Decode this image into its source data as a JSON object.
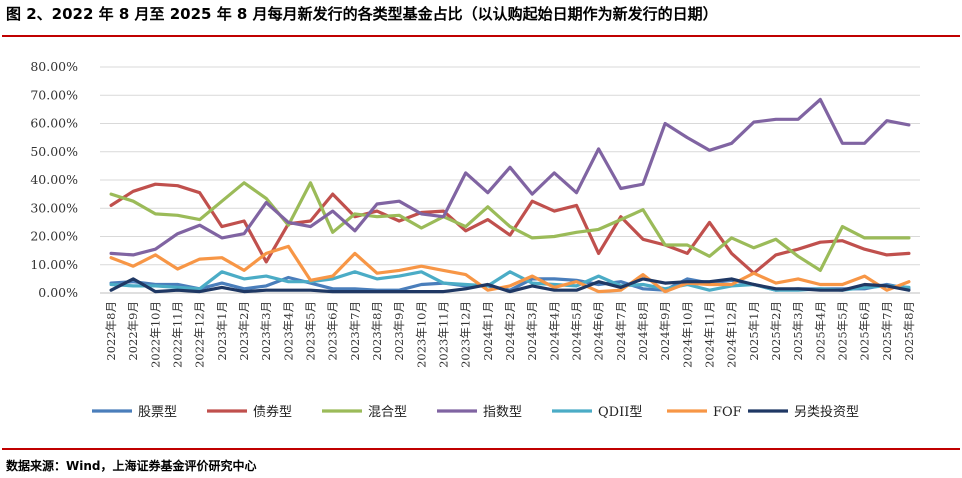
{
  "header": {
    "title": "图 2、2022 年 8 月至 2025 年 8 月每月新发行的各类型基金占比（以认购起始日期作为新发行的日期）"
  },
  "footer": {
    "source": "数据来源：Wind，上海证券基金评价研究中心"
  },
  "colors": {
    "rule": "#c00000",
    "grid": "#d9d9d9"
  },
  "chart_data": {
    "type": "line",
    "title": "",
    "xlabel": "",
    "ylabel": "",
    "ylim": [
      0,
      80
    ],
    "yticks": [
      "0.00%",
      "10.00%",
      "20.00%",
      "30.00%",
      "40.00%",
      "50.00%",
      "60.00%",
      "70.00%",
      "80.00%"
    ],
    "grid": "horizontal",
    "legend": "bottom",
    "x": [
      "2022年8月",
      "2022年9月",
      "2022年10月",
      "2022年11月",
      "2022年12月",
      "2023年1月",
      "2023年2月",
      "2023年3月",
      "2023年4月",
      "2023年5月",
      "2023年6月",
      "2023年7月",
      "2023年8月",
      "2023年9月",
      "2023年10月",
      "2023年11月",
      "2023年12月",
      "2024年1月",
      "2024年2月",
      "2024年3月",
      "2024年4月",
      "2024年5月",
      "2024年6月",
      "2024年7月",
      "2024年8月",
      "2024年9月",
      "2024年10月",
      "2024年11月",
      "2024年12月",
      "2025年1月",
      "2025年2月",
      "2025年3月",
      "2025年4月",
      "2025年5月",
      "2025年6月",
      "2025年7月",
      "2025年8月"
    ],
    "series": [
      {
        "name": "股票型",
        "color": "#4a7ebb",
        "values": [
          3.5,
          4.0,
          3.0,
          3.0,
          1.5,
          3.5,
          1.5,
          2.5,
          5.5,
          3.5,
          1.5,
          1.5,
          1.0,
          1.0,
          3.0,
          3.5,
          2.5,
          2.5,
          1.0,
          5.0,
          5.0,
          4.5,
          3.0,
          4.0,
          1.5,
          1.0,
          5.0,
          3.5,
          4.5,
          3.0,
          1.0,
          1.5,
          1.5,
          1.5,
          1.5,
          3.0,
          1.5
        ]
      },
      {
        "name": "债券型",
        "color": "#c0504d",
        "values": [
          31.0,
          36.0,
          38.5,
          38.0,
          35.5,
          23.5,
          25.5,
          11.0,
          24.5,
          25.5,
          35.0,
          27.0,
          29.0,
          25.5,
          28.5,
          29.0,
          22.0,
          26.0,
          20.5,
          32.5,
          29.0,
          31.0,
          14.0,
          27.0,
          19.0,
          17.0,
          14.0,
          25.0,
          14.0,
          7.0,
          13.5,
          15.5,
          18.0,
          18.5,
          15.5,
          13.5,
          14.0
        ]
      },
      {
        "name": "混合型",
        "color": "#9bbb59",
        "values": [
          35.0,
          32.5,
          28.0,
          27.5,
          26.0,
          32.5,
          39.0,
          33.5,
          24.0,
          39.0,
          21.5,
          28.0,
          27.0,
          27.5,
          23.0,
          27.0,
          23.5,
          30.5,
          23.5,
          19.5,
          20.0,
          21.5,
          22.5,
          26.0,
          29.5,
          17.0,
          17.0,
          13.0,
          19.5,
          16.0,
          19.0,
          13.0,
          8.0,
          23.5,
          19.5,
          19.5,
          19.5
        ]
      },
      {
        "name": "指数型",
        "color": "#8064a2",
        "values": [
          14.0,
          13.5,
          15.5,
          21.0,
          24.0,
          19.5,
          21.0,
          32.0,
          25.0,
          23.5,
          29.0,
          22.0,
          31.5,
          32.5,
          28.0,
          27.0,
          42.5,
          35.5,
          44.5,
          35.0,
          42.5,
          35.5,
          51.0,
          37.0,
          38.5,
          60.0,
          55.0,
          50.5,
          53.0,
          60.5,
          61.5,
          61.5,
          68.5,
          53.0,
          53.0,
          61.0,
          59.5
        ]
      },
      {
        "name": "QDII型",
        "color": "#4bacc6",
        "values": [
          3.0,
          2.5,
          2.5,
          2.0,
          1.5,
          7.5,
          5.0,
          6.0,
          4.0,
          4.0,
          5.0,
          7.5,
          5.0,
          6.0,
          7.5,
          3.5,
          3.0,
          2.5,
          7.5,
          3.5,
          3.0,
          2.5,
          6.0,
          2.5,
          3.0,
          1.5,
          3.0,
          1.0,
          2.5,
          3.0,
          1.0,
          1.0,
          1.5,
          1.0,
          2.0,
          2.5,
          2.0
        ]
      },
      {
        "name": "FOF",
        "color": "#f79646",
        "values": [
          12.5,
          9.5,
          13.5,
          8.5,
          12.0,
          12.5,
          8.0,
          14.0,
          16.5,
          4.5,
          6.0,
          14.0,
          7.0,
          8.0,
          9.5,
          8.0,
          6.5,
          1.0,
          2.5,
          6.0,
          2.0,
          4.0,
          0.5,
          1.0,
          6.5,
          0.5,
          3.5,
          3.0,
          3.0,
          7.0,
          3.5,
          5.0,
          3.0,
          3.0,
          6.0,
          1.0,
          4.0
        ]
      },
      {
        "name": "另类投资型",
        "color": "#1f3864",
        "values": [
          1.0,
          5.0,
          0.5,
          1.0,
          0.5,
          2.0,
          0.5,
          1.0,
          1.0,
          1.0,
          0.5,
          0.5,
          0.5,
          0.5,
          0.5,
          0.5,
          1.5,
          3.0,
          0.5,
          2.5,
          1.0,
          1.0,
          4.0,
          2.0,
          5.0,
          3.5,
          4.0,
          4.0,
          5.0,
          3.0,
          1.5,
          1.5,
          1.0,
          1.0,
          3.0,
          2.5,
          1.0
        ]
      }
    ]
  }
}
